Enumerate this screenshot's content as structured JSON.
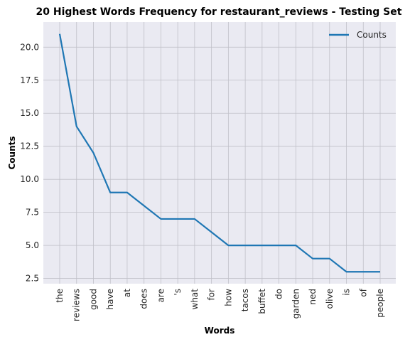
{
  "chart_data": {
    "type": "line",
    "title": "20 Highest Words Frequency for restaurant_reviews - Testing Set",
    "xlabel": "Words",
    "ylabel": "Counts",
    "categories": [
      "the",
      "reviews",
      "good",
      "have",
      "at",
      "does",
      "are",
      "'s",
      "what",
      "for",
      "how",
      "tacos",
      "buffet",
      "do",
      "garden",
      "ned",
      "olive",
      "is",
      "of",
      "people"
    ],
    "series": [
      {
        "name": "Counts",
        "values": [
          21,
          14,
          12,
          9,
          9,
          8,
          7,
          7,
          7,
          6,
          5,
          5,
          5,
          5,
          5,
          4,
          4,
          3,
          3,
          3
        ]
      }
    ],
    "yticks": [
      "2.5",
      "5.0",
      "7.5",
      "10.0",
      "12.5",
      "15.0",
      "17.5",
      "20.0"
    ],
    "ylim": [
      2.1,
      21.9
    ],
    "grid": true,
    "legend_position": "top-right",
    "colors": {
      "line": "#1f77b4",
      "plot_background": "#eaeaf2",
      "grid": "#c0c0c8"
    }
  }
}
